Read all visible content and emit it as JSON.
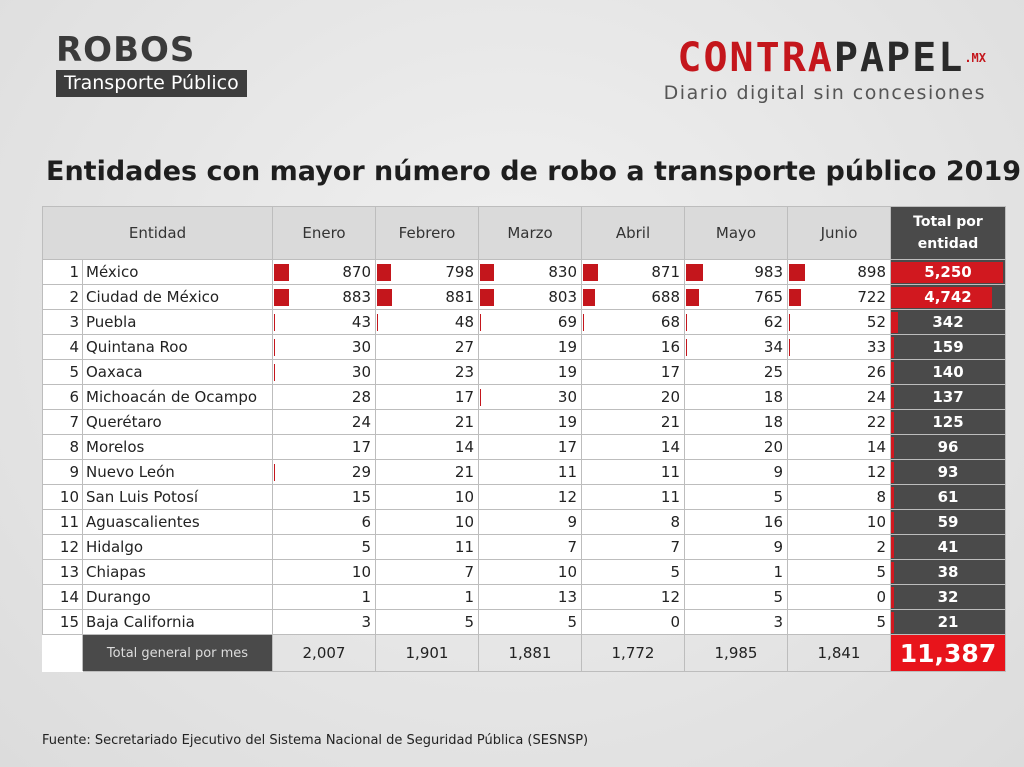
{
  "header": {
    "title": "ROBOS",
    "subtitle": "Transporte Público",
    "brand_red": "CONTRA",
    "brand_dark": "PAPEL",
    "brand_mx": ".MX",
    "brand_tagline": "Diario digital sin concesiones"
  },
  "colors": {
    "accent": "#c4161c",
    "dark": "#4a4a4a",
    "grand": "#e8141b"
  },
  "chart_data": {
    "type": "table",
    "title": "Entidades con mayor número de robo a transporte público 2019",
    "columns": [
      "Entidad",
      "Enero",
      "Febrero",
      "Marzo",
      "Abril",
      "Mayo",
      "Junio",
      "Total por entidad"
    ],
    "rows": [
      {
        "rank": "1",
        "entity": "México",
        "values": [
          "870",
          "798",
          "830",
          "871",
          "983",
          "898"
        ],
        "total": "5,250",
        "total_num": 5250
      },
      {
        "rank": "2",
        "entity": "Ciudad de México",
        "values": [
          "883",
          "881",
          "803",
          "688",
          "765",
          "722"
        ],
        "total": "4,742",
        "total_num": 4742
      },
      {
        "rank": "3",
        "entity": "Puebla",
        "values": [
          "43",
          "48",
          "69",
          "68",
          "62",
          "52"
        ],
        "total": "342",
        "total_num": 342
      },
      {
        "rank": "4",
        "entity": "Quintana Roo",
        "values": [
          "30",
          "27",
          "19",
          "16",
          "34",
          "33"
        ],
        "total": "159",
        "total_num": 159
      },
      {
        "rank": "5",
        "entity": "Oaxaca",
        "values": [
          "30",
          "23",
          "19",
          "17",
          "25",
          "26"
        ],
        "total": "140",
        "total_num": 140
      },
      {
        "rank": "6",
        "entity": "Michoacán de Ocampo",
        "values": [
          "28",
          "17",
          "30",
          "20",
          "18",
          "24"
        ],
        "total": "137",
        "total_num": 137
      },
      {
        "rank": "7",
        "entity": "Querétaro",
        "values": [
          "24",
          "21",
          "19",
          "21",
          "18",
          "22"
        ],
        "total": "125",
        "total_num": 125
      },
      {
        "rank": "8",
        "entity": "Morelos",
        "values": [
          "17",
          "14",
          "17",
          "14",
          "20",
          "14"
        ],
        "total": "96",
        "total_num": 96
      },
      {
        "rank": "9",
        "entity": "Nuevo León",
        "values": [
          "29",
          "21",
          "11",
          "11",
          "9",
          "12"
        ],
        "total": "93",
        "total_num": 93
      },
      {
        "rank": "10",
        "entity": "San Luis Potosí",
        "values": [
          "15",
          "10",
          "12",
          "11",
          "5",
          "8"
        ],
        "total": "61",
        "total_num": 61
      },
      {
        "rank": "11",
        "entity": "Aguascalientes",
        "values": [
          "6",
          "10",
          "9",
          "8",
          "16",
          "10"
        ],
        "total": "59",
        "total_num": 59
      },
      {
        "rank": "12",
        "entity": "Hidalgo",
        "values": [
          "5",
          "11",
          "7",
          "7",
          "9",
          "2"
        ],
        "total": "41",
        "total_num": 41
      },
      {
        "rank": "13",
        "entity": "Chiapas",
        "values": [
          "10",
          "7",
          "10",
          "5",
          "1",
          "5"
        ],
        "total": "38",
        "total_num": 38
      },
      {
        "rank": "14",
        "entity": "Durango",
        "values": [
          "1",
          "1",
          "13",
          "12",
          "5",
          "0"
        ],
        "total": "32",
        "total_num": 32
      },
      {
        "rank": "15",
        "entity": "Baja California",
        "values": [
          "3",
          "5",
          "5",
          "0",
          "3",
          "5"
        ],
        "total": "21",
        "total_num": 21
      }
    ],
    "footer": {
      "label": "Total general por mes",
      "values": [
        "2,007",
        "1,901",
        "1,881",
        "1,772",
        "1,985",
        "1,841"
      ],
      "grand_total": "11,387"
    }
  },
  "source": "Fuente: Secretariado Ejecutivo del Sistema Nacional de Seguridad Pública (SESNSP)"
}
